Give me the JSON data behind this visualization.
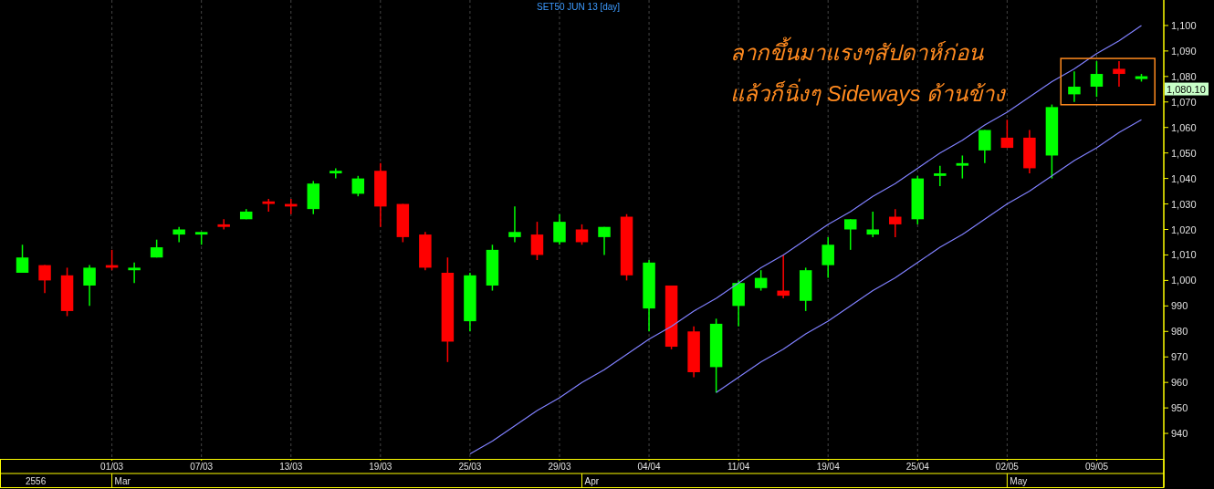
{
  "chart_data": {
    "type": "candlestick",
    "title": "SET50 JUN 13  [day]",
    "categories": [
      null,
      null,
      null,
      null,
      "01/03",
      null,
      null,
      null,
      "07/03",
      null,
      null,
      null,
      "13/03",
      null,
      null,
      null,
      "19/03",
      null,
      null,
      null,
      "25/03",
      null,
      null,
      null,
      "29/03",
      null,
      null,
      null,
      "04/04",
      null,
      null,
      null,
      "11/04",
      null,
      null,
      null,
      "19/04",
      null,
      null,
      null,
      "25/04",
      null,
      null,
      null,
      "02/05",
      null,
      null,
      null,
      "09/05",
      null,
      null
    ],
    "ohlc": [
      [
        1003,
        1014,
        1003,
        1009
      ],
      [
        1006,
        1006,
        995,
        1000
      ],
      [
        1002,
        1005,
        986,
        988
      ],
      [
        998,
        1006,
        990,
        1005
      ],
      [
        1006,
        1012,
        1004,
        1005
      ],
      [
        1004,
        1007,
        999,
        1005
      ],
      [
        1009,
        1016,
        1009,
        1013
      ],
      [
        1018,
        1021,
        1015,
        1020
      ],
      [
        1018,
        1019,
        1014,
        1019
      ],
      [
        1022,
        1024,
        1020,
        1021
      ],
      [
        1024,
        1028,
        1024,
        1027
      ],
      [
        1031,
        1032,
        1027,
        1030
      ],
      [
        1030,
        1032,
        1026,
        1029
      ],
      [
        1028,
        1039,
        1026,
        1038
      ],
      [
        1042,
        1044,
        1040,
        1043
      ],
      [
        1034,
        1041,
        1033,
        1040
      ],
      [
        1043,
        1046,
        1021,
        1029
      ],
      [
        1030,
        1030,
        1015,
        1017
      ],
      [
        1018,
        1019,
        1004,
        1005
      ],
      [
        1003,
        1009,
        968,
        976
      ],
      [
        984,
        1003,
        980,
        1002
      ],
      [
        998,
        1014,
        996,
        1012
      ],
      [
        1017,
        1029,
        1015,
        1019
      ],
      [
        1018,
        1023,
        1008,
        1010
      ],
      [
        1015,
        1026,
        1014,
        1023
      ],
      [
        1020,
        1022,
        1014,
        1015
      ],
      [
        1017,
        1021,
        1010,
        1021
      ],
      [
        1025,
        1026,
        1000,
        1002
      ],
      [
        989,
        1008,
        980,
        1007
      ],
      [
        998,
        998,
        973,
        974
      ],
      [
        980,
        982,
        962,
        964
      ],
      [
        966,
        985,
        956,
        983
      ],
      [
        990,
        1000,
        982,
        999
      ],
      [
        997,
        1004,
        996,
        1001
      ],
      [
        996,
        1010,
        993,
        994
      ],
      [
        992,
        1005,
        988,
        1004
      ],
      [
        1006,
        1017,
        1001,
        1014
      ],
      [
        1020,
        1024,
        1012,
        1024
      ],
      [
        1018,
        1027,
        1017,
        1020
      ],
      [
        1025,
        1028,
        1017,
        1022
      ],
      [
        1024,
        1041,
        1022,
        1040
      ],
      [
        1041,
        1045,
        1037,
        1042
      ],
      [
        1045,
        1049,
        1040,
        1046
      ],
      [
        1051,
        1059,
        1046,
        1059
      ],
      [
        1056,
        1063,
        1052,
        1052
      ],
      [
        1056,
        1059,
        1042,
        1044
      ],
      [
        1049,
        1069,
        1040,
        1068
      ],
      [
        1073,
        1082,
        1070,
        1076
      ],
      [
        1076,
        1086,
        1072,
        1081
      ],
      [
        1083,
        1086,
        1076,
        1081
      ],
      [
        1079,
        1081,
        1078,
        1080.1
      ]
    ],
    "colors": [
      "#00ff00",
      "#ff0000",
      "#ff0000",
      "#00ff00",
      "#ff0000",
      "#00ff00",
      "#00ff00",
      "#00ff00",
      "#00ff00",
      "#ff0000",
      "#00ff00",
      "#ff0000",
      "#ff0000",
      "#00ff00",
      "#00ff00",
      "#00ff00",
      "#ff0000",
      "#ff0000",
      "#ff0000",
      "#ff0000",
      "#00ff00",
      "#00ff00",
      "#00ff00",
      "#ff0000",
      "#00ff00",
      "#ff0000",
      "#00ff00",
      "#ff0000",
      "#00ff00",
      "#ff0000",
      "#ff0000",
      "#00ff00",
      "#00ff00",
      "#00ff00",
      "#ff0000",
      "#00ff00",
      "#00ff00",
      "#00ff00",
      "#00ff00",
      "#ff0000",
      "#00ff00",
      "#00ff00",
      "#00ff00",
      "#00ff00",
      "#ff0000",
      "#ff0000",
      "#00ff00",
      "#00ff00",
      "#00ff00",
      "#ff0000",
      "#00ff00"
    ],
    "series": [
      {
        "type": "line",
        "color": "#8080ff",
        "values": [
          null,
          null,
          null,
          null,
          null,
          null,
          null,
          null,
          null,
          null,
          null,
          null,
          null,
          null,
          null,
          null,
          null,
          null,
          null,
          null,
          932,
          937,
          943,
          949,
          954,
          960,
          965,
          971,
          977,
          982,
          988,
          993,
          999,
          1005,
          1010,
          1016,
          1022,
          1027,
          1033,
          1038,
          1044,
          1050,
          1055,
          1061,
          1066,
          1072,
          1078,
          1083,
          1089,
          1094,
          1100
        ]
      },
      {
        "type": "line",
        "color": "#8080ff",
        "values": [
          null,
          null,
          null,
          null,
          null,
          null,
          null,
          null,
          null,
          null,
          null,
          null,
          null,
          null,
          null,
          null,
          null,
          null,
          null,
          null,
          null,
          null,
          null,
          null,
          null,
          null,
          null,
          null,
          null,
          null,
          null,
          956,
          962,
          968,
          973,
          979,
          984,
          990,
          996,
          1001,
          1007,
          1013,
          1018,
          1024,
          1030,
          1035,
          1041,
          1047,
          1052,
          1058,
          1063
        ]
      }
    ],
    "ylim": [
      930,
      1110
    ],
    "yticks": [
      {
        "value": 940,
        "label": "940"
      },
      {
        "value": 950,
        "label": "950"
      },
      {
        "value": 960,
        "label": "960"
      },
      {
        "value": 970,
        "label": "970"
      },
      {
        "value": 980,
        "label": "980"
      },
      {
        "value": 990,
        "label": "990"
      },
      {
        "value": 1000,
        "label": "1,000"
      },
      {
        "value": 1010,
        "label": "1,010"
      },
      {
        "value": 1020,
        "label": "1,020"
      },
      {
        "value": 1030,
        "label": "1,030"
      },
      {
        "value": 1040,
        "label": "1,040"
      },
      {
        "value": 1050,
        "label": "1,050"
      },
      {
        "value": 1060,
        "label": "1,060"
      },
      {
        "value": 1070,
        "label": "1,070"
      },
      {
        "value": 1080,
        "label": "1,080"
      },
      {
        "value": 1090,
        "label": "1,090"
      },
      {
        "value": 1100,
        "label": "1,100"
      }
    ],
    "grid": "x",
    "annotations": [
      "ลากขึ้นมาแรงๆสัปดาห์ก่อน",
      "แล้วก็นิ่งๆ Sideways ด้านข้าง",
      "1,080.10",
      "2556",
      "Mar",
      "Apr",
      "May"
    ]
  }
}
